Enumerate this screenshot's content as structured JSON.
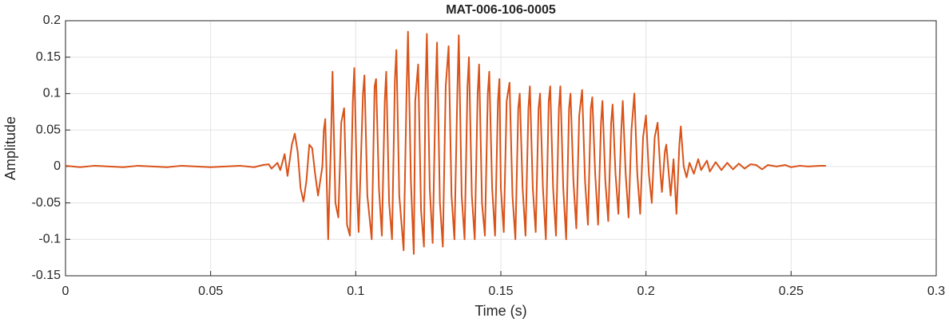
{
  "chart_data": {
    "type": "line",
    "title": "MAT-006-106-0005",
    "x_label": "Time (s)",
    "y_label": "Amplitude",
    "x": [
      0,
      0.005,
      0.01,
      0.015,
      0.02,
      0.025,
      0.03,
      0.035,
      0.04,
      0.045,
      0.05,
      0.055,
      0.06,
      0.065,
      0.068,
      0.07,
      0.071,
      0.073,
      0.074,
      0.0755,
      0.0765,
      0.078,
      0.079,
      0.08,
      0.081,
      0.082,
      0.083,
      0.084,
      0.085,
      0.086,
      0.087,
      0.0885,
      0.089,
      0.0895,
      0.09,
      0.0905,
      0.0915,
      0.092,
      0.093,
      0.094,
      0.095,
      0.096,
      0.097,
      0.098,
      0.099,
      0.0995,
      0.1005,
      0.101,
      0.1025,
      0.103,
      0.104,
      0.1055,
      0.1065,
      0.107,
      0.108,
      0.109,
      0.11,
      0.1105,
      0.1115,
      0.1125,
      0.1135,
      0.114,
      0.115,
      0.1165,
      0.1175,
      0.118,
      0.119,
      0.12,
      0.1205,
      0.1215,
      0.1225,
      0.1235,
      0.124,
      0.1245,
      0.1255,
      0.1265,
      0.1275,
      0.128,
      0.129,
      0.13,
      0.131,
      0.132,
      0.133,
      0.134,
      0.135,
      0.1355,
      0.1365,
      0.1375,
      0.1385,
      0.139,
      0.14,
      0.141,
      0.142,
      0.1425,
      0.1435,
      0.1445,
      0.1455,
      0.146,
      0.147,
      0.148,
      0.149,
      0.1495,
      0.15,
      0.151,
      0.152,
      0.153,
      0.154,
      0.155,
      0.156,
      0.1565,
      0.1575,
      0.1585,
      0.1595,
      0.16,
      0.161,
      0.162,
      0.163,
      0.1635,
      0.1645,
      0.1655,
      0.1665,
      0.167,
      0.168,
      0.169,
      0.17,
      0.1705,
      0.1715,
      0.1725,
      0.1735,
      0.174,
      0.175,
      0.176,
      0.177,
      0.178,
      0.179,
      0.18,
      0.181,
      0.1815,
      0.1825,
      0.1835,
      0.1845,
      0.185,
      0.186,
      0.187,
      0.188,
      0.1885,
      0.1895,
      0.1905,
      0.1915,
      0.192,
      0.193,
      0.194,
      0.195,
      0.196,
      0.197,
      0.198,
      0.199,
      0.2,
      0.201,
      0.202,
      0.203,
      0.204,
      0.205,
      0.2055,
      0.2065,
      0.207,
      0.2085,
      0.2095,
      0.2105,
      0.2115,
      0.212,
      0.213,
      0.214,
      0.215,
      0.2165,
      0.218,
      0.219,
      0.221,
      0.222,
      0.224,
      0.226,
      0.228,
      0.23,
      0.232,
      0.234,
      0.236,
      0.238,
      0.24,
      0.242,
      0.245,
      0.248,
      0.25,
      0.253,
      0.256,
      0.26,
      0.262
    ],
    "series": [
      {
        "color": "#d95319",
        "values": [
          0.001,
          -0.001,
          0.001,
          0,
          -0.001,
          0.001,
          0,
          -0.001,
          0.001,
          0,
          -0.001,
          0,
          0.001,
          -0.001,
          0.002,
          0.003,
          -0.003,
          0.005,
          -0.005,
          0.017,
          -0.013,
          0.03,
          0.045,
          0.02,
          -0.03,
          -0.048,
          -0.02,
          0.03,
          0.025,
          -0.01,
          -0.04,
          0,
          0.05,
          0.065,
          -0.02,
          -0.1,
          0.04,
          0.13,
          -0.05,
          -0.07,
          0.06,
          0.08,
          -0.08,
          -0.095,
          0.09,
          0.135,
          -0.04,
          -0.09,
          0.1,
          0.125,
          -0.04,
          -0.1,
          0.11,
          0.12,
          -0.03,
          -0.095,
          0.09,
          0.13,
          -0.05,
          -0.1,
          0.12,
          0.16,
          -0.04,
          -0.115,
          0.1,
          0.185,
          -0.02,
          -0.12,
          0.09,
          0.14,
          -0.06,
          -0.11,
          0.1,
          0.182,
          -0.03,
          -0.105,
          0.1,
          0.17,
          -0.05,
          -0.11,
          0.11,
          0.165,
          -0.04,
          -0.1,
          0.1,
          0.18,
          -0.04,
          -0.1,
          0.11,
          0.15,
          -0.04,
          -0.1,
          0.1,
          0.14,
          -0.05,
          -0.095,
          0.1,
          0.13,
          -0.03,
          -0.095,
          0.09,
          0.12,
          -0.03,
          -0.09,
          0.09,
          0.115,
          -0.04,
          -0.1,
          0.08,
          0.1,
          -0.03,
          -0.095,
          0.08,
          0.11,
          -0.03,
          -0.09,
          0.08,
          0.1,
          -0.03,
          -0.1,
          0.09,
          0.11,
          -0.03,
          -0.095,
          0.08,
          0.11,
          -0.03,
          -0.1,
          0.08,
          0.1,
          -0.02,
          -0.085,
          0.07,
          0.105,
          -0.02,
          -0.08,
          0.08,
          0.095,
          -0.01,
          -0.08,
          0.06,
          0.09,
          -0.02,
          -0.075,
          0.06,
          0.085,
          -0.01,
          -0.065,
          0.05,
          0.09,
          -0.01,
          -0.07,
          0.05,
          0.1,
          -0.01,
          -0.065,
          0.04,
          0.07,
          -0.01,
          -0.05,
          0.04,
          0.06,
          -0.01,
          -0.035,
          0.02,
          0.03,
          -0.04,
          0.01,
          -0.065,
          0.03,
          0.055,
          0,
          -0.015,
          0.005,
          -0.01,
          0.01,
          -0.005,
          0.008,
          -0.007,
          0.006,
          -0.005,
          0.005,
          -0.004,
          0.004,
          -0.003,
          0.003,
          0.002,
          -0.004,
          0.002,
          0,
          0.002,
          -0.001,
          0.001,
          0,
          0.001,
          0.001
        ]
      }
    ],
    "xlim": [
      0,
      0.3
    ],
    "ylim": [
      -0.15,
      0.2
    ],
    "xticks": [
      0,
      0.05,
      0.1,
      0.15,
      0.2,
      0.25,
      0.3
    ],
    "yticks": [
      -0.15,
      -0.1,
      -0.05,
      0,
      0.05,
      0.1,
      0.15,
      0.2
    ],
    "grid": true
  }
}
